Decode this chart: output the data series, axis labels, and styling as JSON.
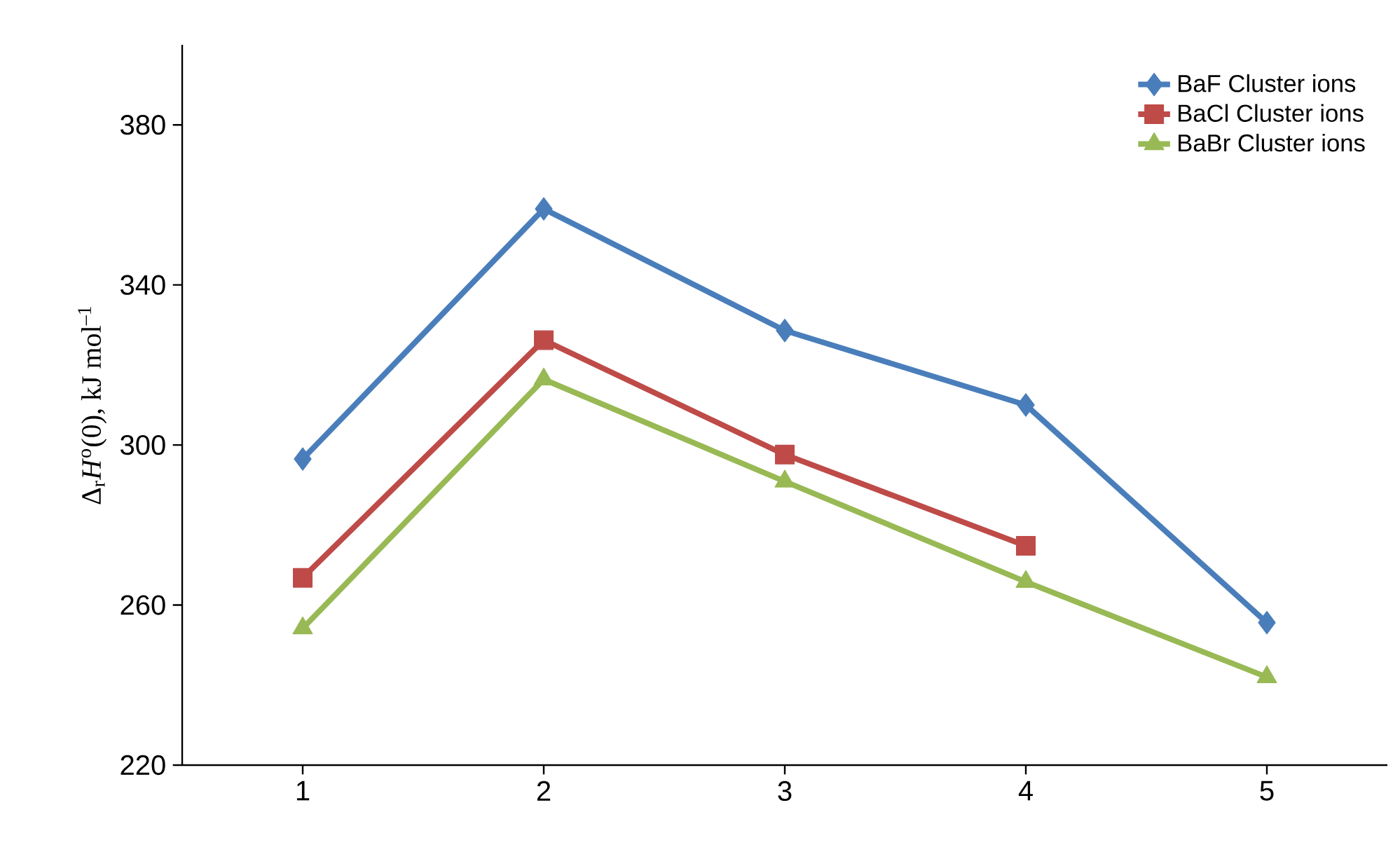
{
  "chart_data": {
    "type": "line",
    "ylabel": "Δ$_{r}$*H*$^{o}$(0), kJ mol$^{–1}$",
    "x": [
      1,
      2,
      3,
      4,
      5
    ],
    "xlim": [
      0.5,
      5.5
    ],
    "xticks": [
      1,
      2,
      3,
      4,
      5
    ],
    "ylim": [
      220,
      400
    ],
    "yticks": [
      220,
      260,
      300,
      340,
      380
    ],
    "legend": "top right",
    "line_style": "solid",
    "series": [
      {
        "name": "BaF Cluster ions",
        "color": "#4a7ebb",
        "marker": "diamond",
        "values": [
          296.5,
          359,
          328.6,
          310,
          255.6
        ]
      },
      {
        "name": "BaCl Cluster ions",
        "color": "#be4b48",
        "marker": "square",
        "values": [
          266.8,
          326.2,
          297.6,
          274.8,
          null
        ]
      },
      {
        "name": "BaBr Cluster ions",
        "color": "#98b954",
        "marker": "triangle",
        "values": [
          254.2,
          316.4,
          290.9,
          265.8,
          242
        ]
      }
    ]
  }
}
